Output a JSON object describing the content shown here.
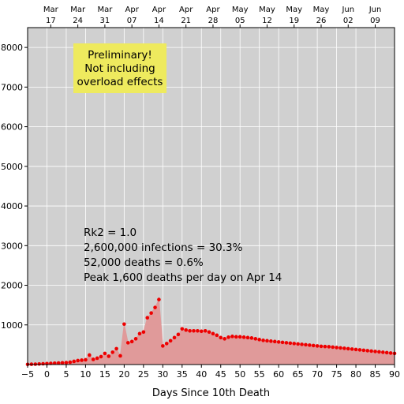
{
  "chart_data": {
    "type": "area",
    "xlabel": "Days Since 10th Death",
    "ylabel": "",
    "xlim": [
      -5,
      90
    ],
    "ylim": [
      0,
      8500
    ],
    "x_ticks": [
      -5,
      0,
      5,
      10,
      15,
      20,
      25,
      30,
      35,
      40,
      45,
      50,
      55,
      60,
      65,
      70,
      75,
      80,
      85,
      90
    ],
    "y_ticks": [
      1000,
      2000,
      3000,
      4000,
      5000,
      6000,
      7000,
      8000
    ],
    "grid": true,
    "top_axis": {
      "ticks": [
        {
          "day": 1,
          "month": "Mar",
          "date": "17"
        },
        {
          "day": 8,
          "month": "Mar",
          "date": "24"
        },
        {
          "day": 15,
          "month": "Mar",
          "date": "31"
        },
        {
          "day": 22,
          "month": "Apr",
          "date": "07"
        },
        {
          "day": 29,
          "month": "Apr",
          "date": "14"
        },
        {
          "day": 36,
          "month": "Apr",
          "date": "21"
        },
        {
          "day": 43,
          "month": "Apr",
          "date": "28"
        },
        {
          "day": 50,
          "month": "May",
          "date": "05"
        },
        {
          "day": 57,
          "month": "May",
          "date": "12"
        },
        {
          "day": 64,
          "month": "May",
          "date": "19"
        },
        {
          "day": 71,
          "month": "May",
          "date": "26"
        },
        {
          "day": 78,
          "month": "Jun",
          "date": "02"
        },
        {
          "day": 85,
          "month": "Jun",
          "date": "09"
        }
      ]
    },
    "annotations": {
      "stats": [
        "Rk2 = 1.0",
        "2,600,000 infections = 30.3%",
        "52,000 deaths = 0.6%",
        "Peak 1,600 deaths per day on Apr 14"
      ],
      "note": [
        "Preliminary!",
        "Not including",
        "overload effects"
      ]
    },
    "series": [
      {
        "x": [
          -5,
          -4,
          -3,
          -2,
          -1,
          0,
          1,
          2,
          3,
          4,
          5,
          6,
          7,
          8,
          9,
          10,
          11,
          12,
          13,
          14,
          15,
          16,
          17,
          18,
          19,
          20,
          21,
          22,
          23,
          24,
          25,
          26,
          27,
          28,
          29,
          30,
          31,
          32,
          33,
          34,
          35,
          36,
          37,
          38,
          39,
          40,
          41,
          42,
          43,
          44,
          45,
          46,
          47,
          48,
          49,
          50,
          51,
          52,
          53,
          54,
          55,
          56,
          57,
          58,
          59,
          60,
          61,
          62,
          63,
          64,
          65,
          66,
          67,
          68,
          69,
          70,
          71,
          72,
          73,
          74,
          75,
          76,
          77,
          78,
          79,
          80,
          81,
          82,
          83,
          84,
          85,
          86,
          87,
          88,
          89,
          90
        ],
        "values": [
          5,
          8,
          10,
          15,
          20,
          25,
          30,
          35,
          40,
          45,
          50,
          60,
          80,
          100,
          110,
          120,
          240,
          130,
          160,
          200,
          280,
          210,
          310,
          400,
          220,
          1020,
          550,
          580,
          650,
          780,
          820,
          1180,
          1300,
          1440,
          1640,
          470,
          530,
          600,
          680,
          760,
          900,
          870,
          850,
          850,
          850,
          840,
          850,
          820,
          780,
          740,
          680,
          650,
          690,
          710,
          700,
          700,
          690,
          680,
          670,
          650,
          630,
          610,
          600,
          590,
          580,
          570,
          560,
          550,
          540,
          530,
          520,
          510,
          500,
          490,
          480,
          470,
          460,
          455,
          450,
          440,
          430,
          420,
          410,
          400,
          390,
          380,
          370,
          360,
          350,
          340,
          330,
          320,
          310,
          300,
          290,
          280
        ]
      }
    ],
    "colors": {
      "plot_background": "#d0d0d0",
      "area": "#e09a9a",
      "points": "#ee0000",
      "note_background": "#eeea5e",
      "grid": "#ffffff"
    }
  }
}
